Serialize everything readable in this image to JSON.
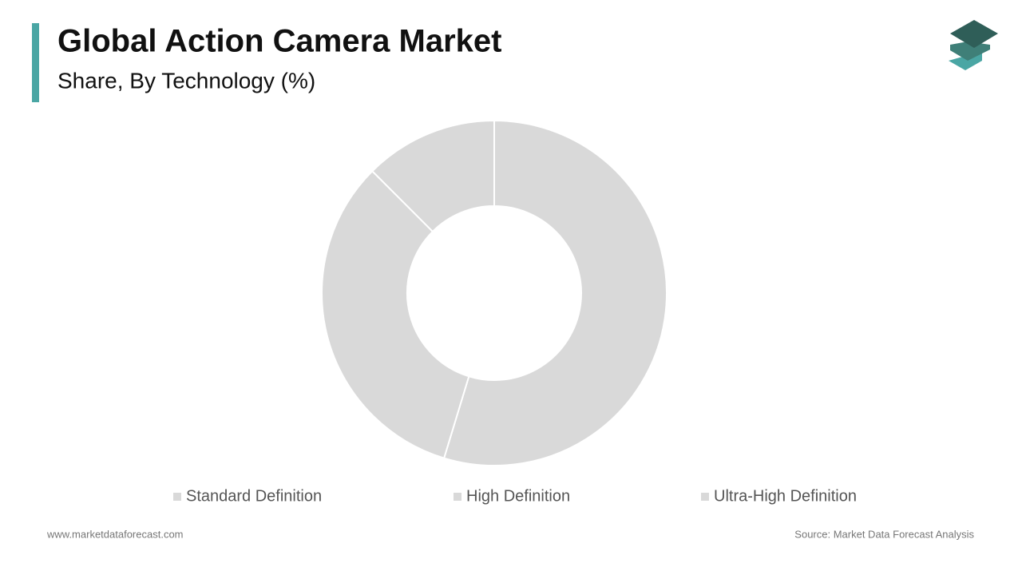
{
  "chart_data": {
    "type": "pie",
    "title": "Global Action Camera Market",
    "subtitle": "Share, By Technology (%)",
    "categories": [
      "Standard Definition",
      "High Definition",
      "Ultra-High Definition"
    ],
    "values": [
      54.7,
      32.8,
      12.5
    ],
    "colors": [
      "#d9d9d9",
      "#d9d9d9",
      "#d9d9d9"
    ]
  },
  "footer": {
    "website": "www.marketdataforecast.com",
    "source": "Source: Market Data Forecast Analysis"
  }
}
